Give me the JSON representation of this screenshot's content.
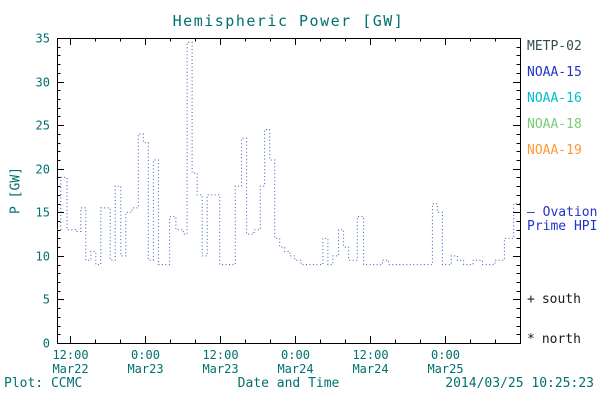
{
  "title": "Hemispheric Power [GW]",
  "footer": {
    "plot_credit": "Plot: CCMC",
    "timestamp": "2014/03/25 10:25:23"
  },
  "legend": {
    "satellites": [
      {
        "label": "METP-02",
        "color": "#2f4f4f"
      },
      {
        "label": "NOAA-15",
        "color": "#2233cc"
      },
      {
        "label": "NOAA-16",
        "color": "#00bccc"
      },
      {
        "label": "NOAA-18",
        "color": "#77cc77"
      },
      {
        "label": "NOAA-19",
        "color": "#ff9933"
      }
    ],
    "line_label_line1": "— Ovation",
    "line_label_line2": "Prime HPI",
    "line_label_color": "#2233cc",
    "markers": [
      {
        "symbol": "+",
        "label": "south"
      },
      {
        "symbol": "*",
        "label": "north"
      }
    ]
  },
  "chart_data": {
    "type": "line",
    "title": "Hemispheric Power [GW]",
    "xlabel": "Date and Time",
    "ylabel": "P [GW]",
    "ylim": [
      0,
      35
    ],
    "yticks": [
      0,
      5,
      10,
      15,
      20,
      25,
      30,
      35
    ],
    "x_hours_range": [
      0,
      74
    ],
    "xticks": [
      {
        "hour": 2,
        "time": "12:00",
        "date": "Mar22"
      },
      {
        "hour": 14,
        "time": "0:00",
        "date": "Mar23"
      },
      {
        "hour": 26,
        "time": "12:00",
        "date": "Mar23"
      },
      {
        "hour": 38,
        "time": "0:00",
        "date": "Mar24"
      },
      {
        "hour": 50,
        "time": "12:00",
        "date": "Mar24"
      },
      {
        "hour": 62,
        "time": "0:00",
        "date": "Mar25"
      }
    ],
    "grid": false,
    "legend_position": "right-outside",
    "text_color": "#007070",
    "frame_color": "#000000",
    "series": [
      {
        "name": "Ovation Prime HPI",
        "color": "#3355bb",
        "line_style": "dotted",
        "step": true,
        "points_hour_gw": [
          [
            0,
            13
          ],
          [
            0.6,
            19
          ],
          [
            1.6,
            13
          ],
          [
            3.0,
            12.8
          ],
          [
            3.8,
            15.5
          ],
          [
            4.6,
            9.5
          ],
          [
            5.4,
            10.5
          ],
          [
            6.2,
            9
          ],
          [
            7.0,
            15.5
          ],
          [
            8.5,
            9.5
          ],
          [
            9.3,
            18
          ],
          [
            10.2,
            10
          ],
          [
            11.0,
            15
          ],
          [
            12.0,
            15.5
          ],
          [
            13.0,
            24
          ],
          [
            13.8,
            23
          ],
          [
            14.6,
            9.5
          ],
          [
            15.4,
            21
          ],
          [
            16.2,
            9
          ],
          [
            18.0,
            14.5
          ],
          [
            19.0,
            13
          ],
          [
            20.2,
            12.5
          ],
          [
            20.8,
            34.5
          ],
          [
            21.6,
            19.5
          ],
          [
            22.4,
            17
          ],
          [
            23.2,
            10
          ],
          [
            24.0,
            17
          ],
          [
            26.0,
            9
          ],
          [
            28.5,
            18
          ],
          [
            29.5,
            23.5
          ],
          [
            30.3,
            12.5
          ],
          [
            31.5,
            13
          ],
          [
            32.5,
            18
          ],
          [
            33.2,
            24.5
          ],
          [
            34.0,
            21
          ],
          [
            34.8,
            12
          ],
          [
            35.6,
            11
          ],
          [
            36.4,
            10.5
          ],
          [
            37.2,
            10
          ],
          [
            38.0,
            9.5
          ],
          [
            39.0,
            9
          ],
          [
            42.5,
            12
          ],
          [
            43.3,
            9
          ],
          [
            44.1,
            10
          ],
          [
            45.0,
            13
          ],
          [
            45.8,
            11
          ],
          [
            46.6,
            9.5
          ],
          [
            48.0,
            14.5
          ],
          [
            49.0,
            9
          ],
          [
            52.0,
            9.5
          ],
          [
            53.0,
            9
          ],
          [
            60.0,
            16
          ],
          [
            60.8,
            15
          ],
          [
            61.6,
            9
          ],
          [
            63.0,
            10
          ],
          [
            64.0,
            9.5
          ],
          [
            65.0,
            9
          ],
          [
            66.5,
            9.5
          ],
          [
            68.0,
            9
          ],
          [
            70.0,
            9.5
          ],
          [
            71.5,
            12
          ],
          [
            73.0,
            16
          ]
        ]
      }
    ]
  }
}
